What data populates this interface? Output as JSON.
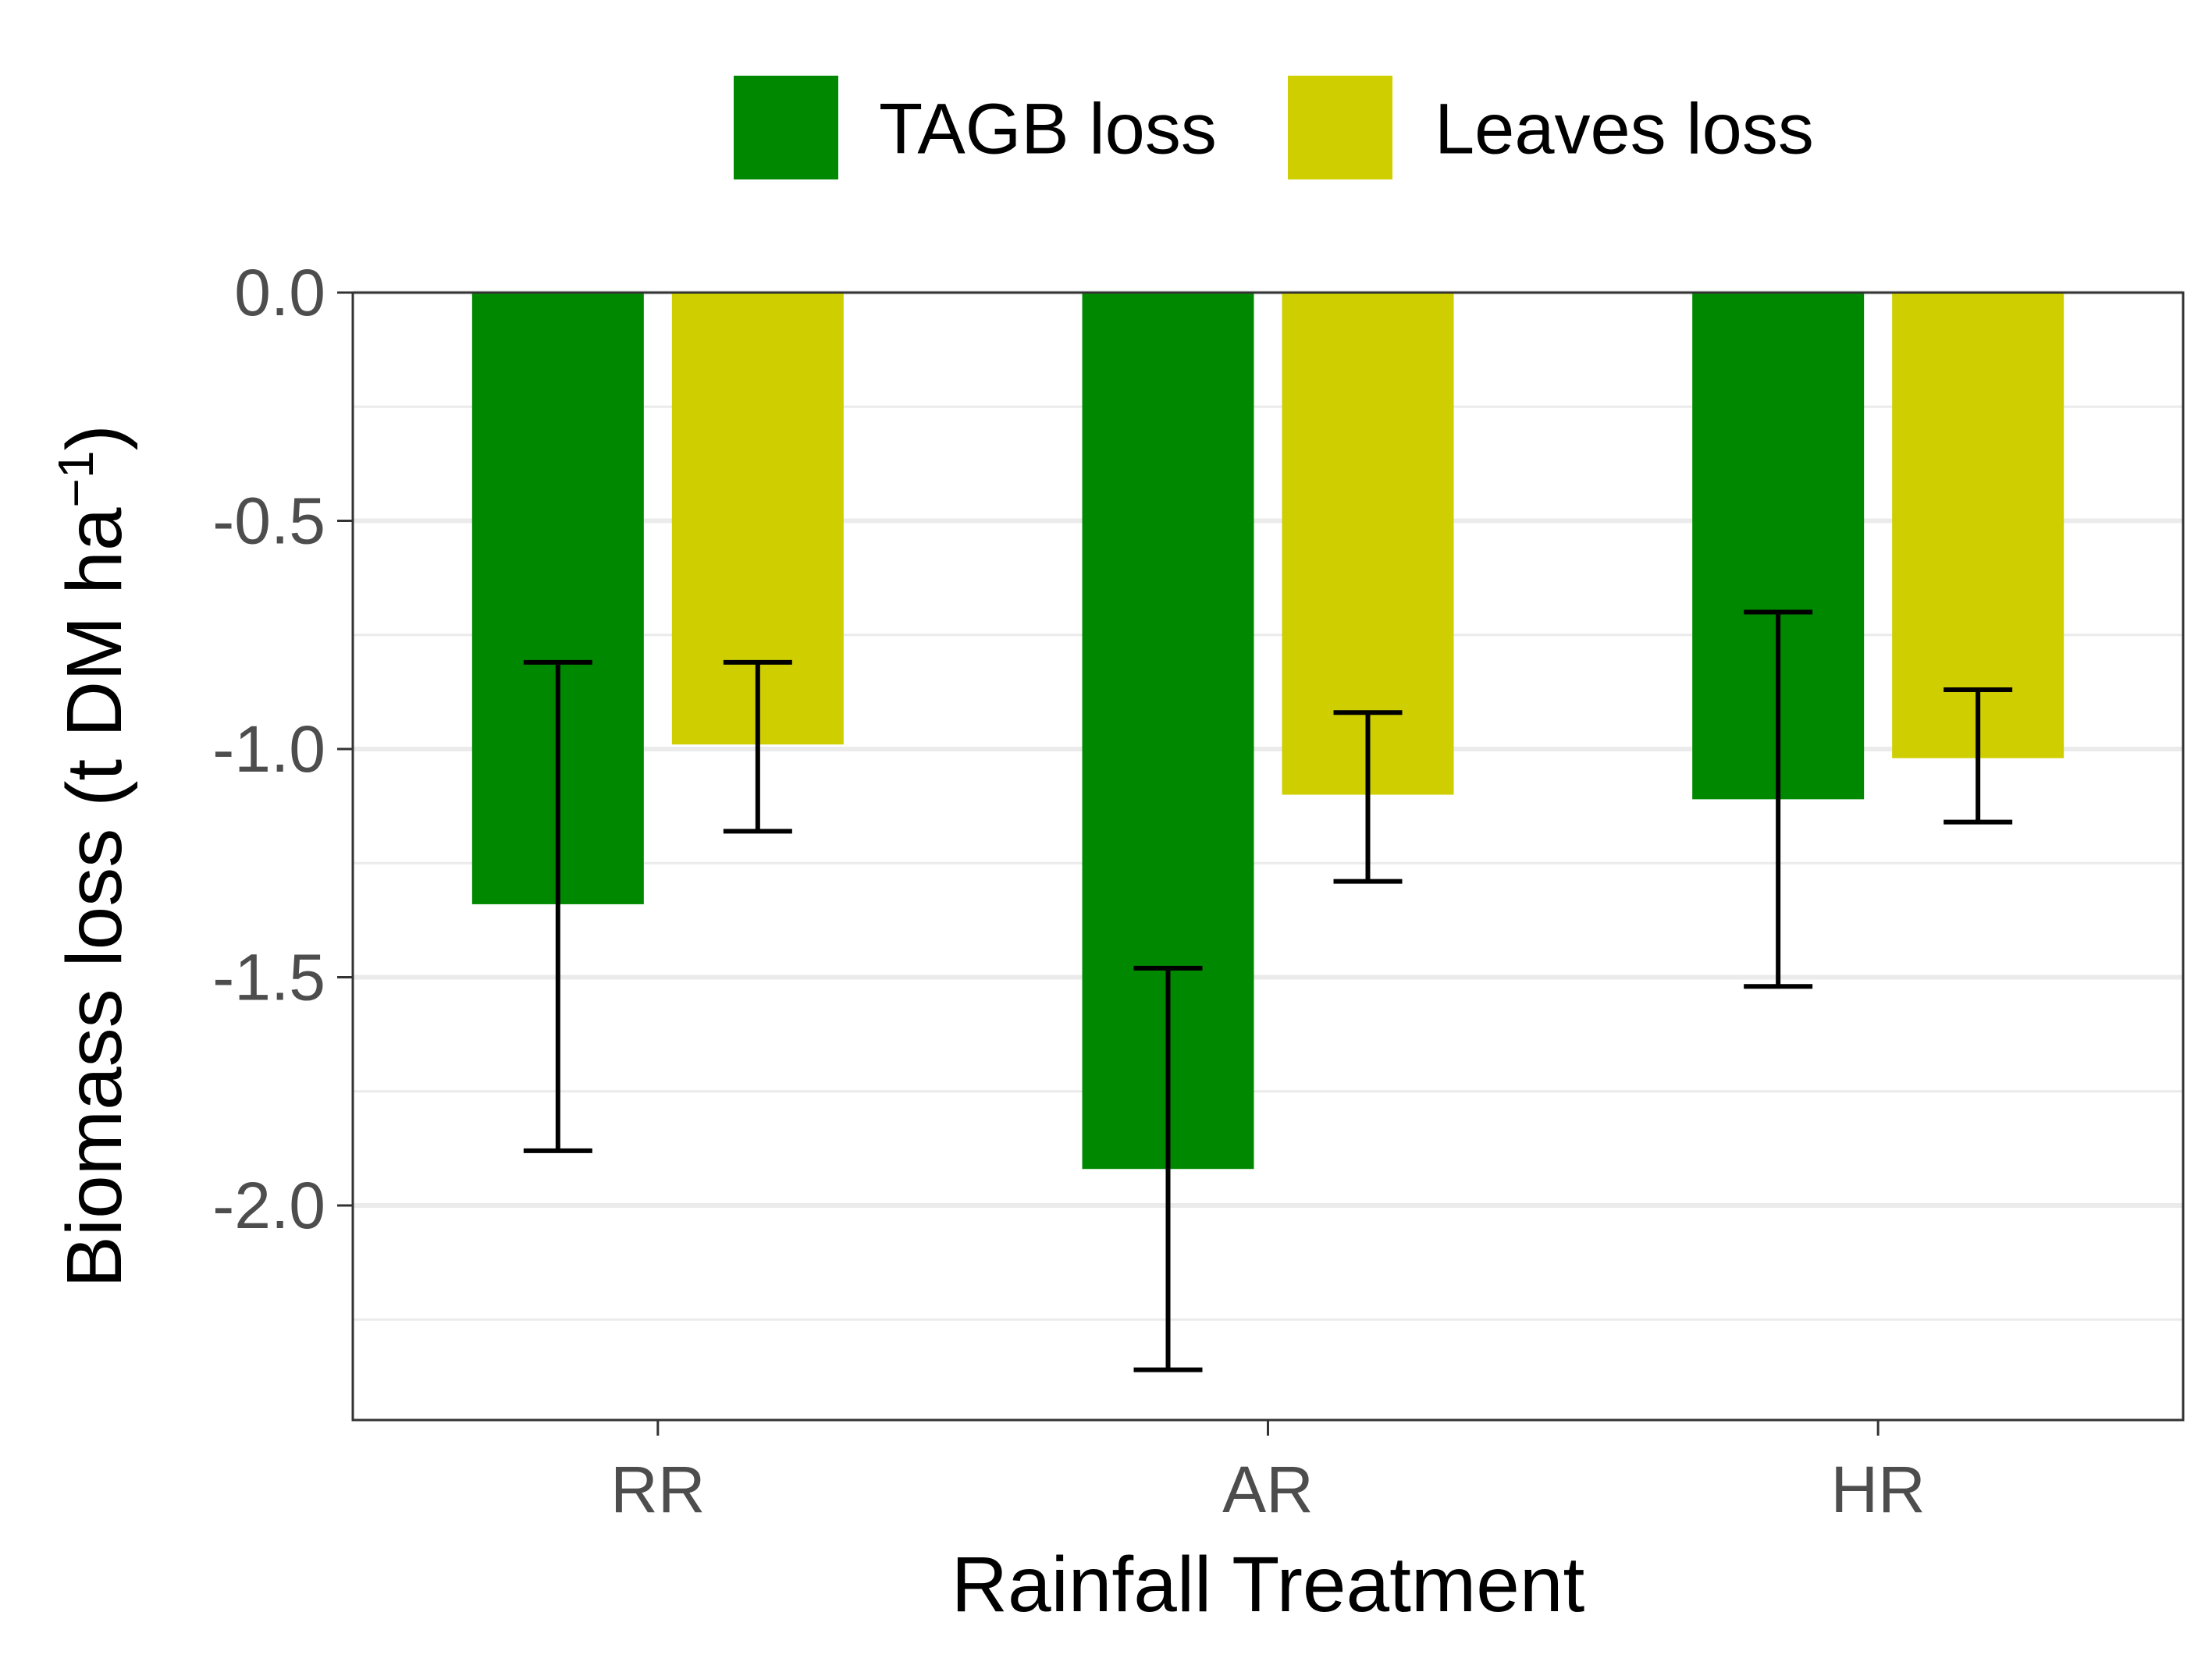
{
  "chart_data": {
    "type": "bar",
    "categories": [
      "RR",
      "AR",
      "HR"
    ],
    "series": [
      {
        "name": "TAGB loss",
        "color": "#008900",
        "values": [
          -1.34,
          -1.92,
          -1.11
        ],
        "error_low": [
          -1.88,
          -2.36,
          -1.52
        ],
        "error_high": [
          -0.81,
          -1.48,
          -0.7
        ]
      },
      {
        "name": "Leaves loss",
        "color": "#CECE00",
        "values": [
          -0.99,
          -1.1,
          -1.02
        ],
        "error_low": [
          -1.18,
          -1.29,
          -1.16
        ],
        "error_high": [
          -0.81,
          -0.92,
          -0.87
        ]
      }
    ],
    "xlabel": "Rainfall Treatment",
    "ylabel": "Biomass loss (t DM ha",
    "ylabel_superscript": "−1",
    "ylabel_suffix": ")",
    "ylim": [
      -2.47,
      0.0
    ],
    "yticks": [
      0.0,
      -0.5,
      -1.0,
      -1.5,
      -2.0
    ],
    "ytick_labels": [
      "0.0",
      "-0.5",
      "-1.0",
      "-1.5",
      "-2.0"
    ],
    "grid": true,
    "legend_position": "top"
  }
}
